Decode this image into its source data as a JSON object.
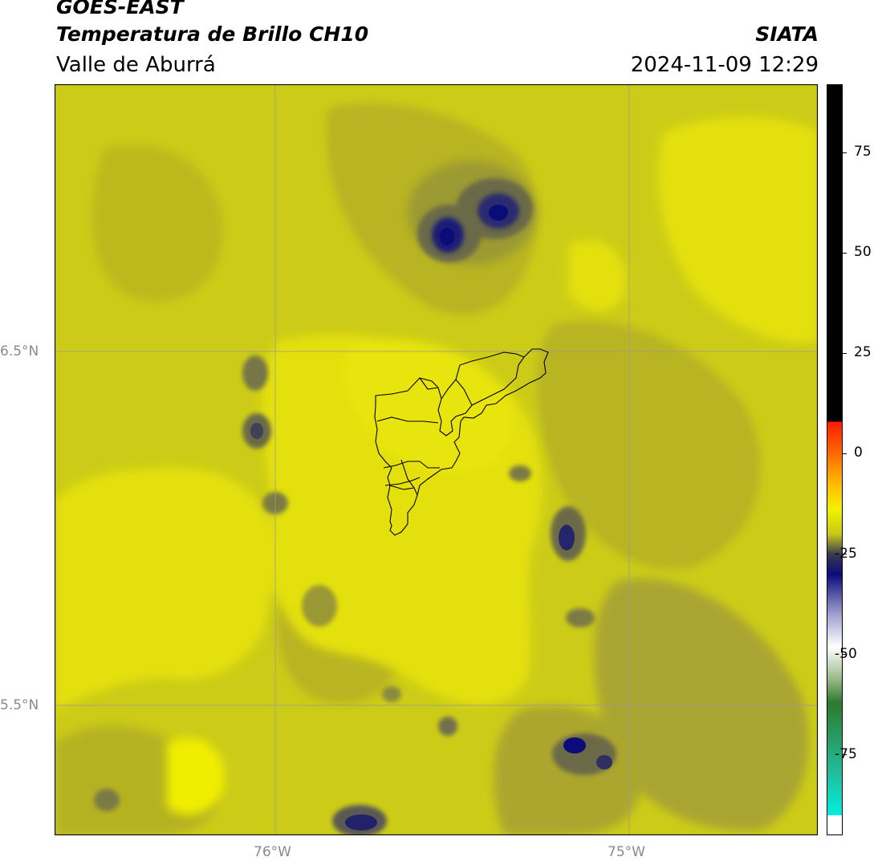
{
  "header": {
    "satellite": "GOES-EAST",
    "product": "Temperatura de Brillo CH10",
    "region": "Valle de Aburrá",
    "agency": "SIATA",
    "timestamp": "2024-11-09 12:29"
  },
  "map": {
    "type": "brightness-temperature-field",
    "lon_labels": [
      "76°W",
      "75°W"
    ],
    "lat_labels": [
      "6.5°N",
      "5.5°N"
    ],
    "gridlines": true,
    "overlay": "Valle de Aburrá municipal boundaries",
    "dominant_value_range": [
      -20,
      -13
    ]
  },
  "colorbar": {
    "ticks": [
      "75",
      "50",
      "25",
      "0",
      "-25",
      "-50",
      "-75"
    ],
    "range": [
      -95,
      92
    ],
    "stops": [
      {
        "v": 92,
        "c": "#000000"
      },
      {
        "v": 8,
        "c": "#000000"
      },
      {
        "v": 8,
        "c": "#ff1a00"
      },
      {
        "v": 0,
        "c": "#ff6a00"
      },
      {
        "v": -8,
        "c": "#ffc000"
      },
      {
        "v": -14,
        "c": "#f2f200"
      },
      {
        "v": -20,
        "c": "#c8c818"
      },
      {
        "v": -25,
        "c": "#3a3a50"
      },
      {
        "v": -30,
        "c": "#0b0b7a"
      },
      {
        "v": -40,
        "c": "#a0a0d0"
      },
      {
        "v": -48,
        "c": "#ffffff"
      },
      {
        "v": -56,
        "c": "#9aba8a"
      },
      {
        "v": -62,
        "c": "#2e7a2e"
      },
      {
        "v": -80,
        "c": "#20c0a0"
      },
      {
        "v": -90,
        "c": "#00f0e0"
      },
      {
        "v": -90,
        "c": "#ffffff"
      },
      {
        "v": -95,
        "c": "#ffffff"
      }
    ]
  }
}
